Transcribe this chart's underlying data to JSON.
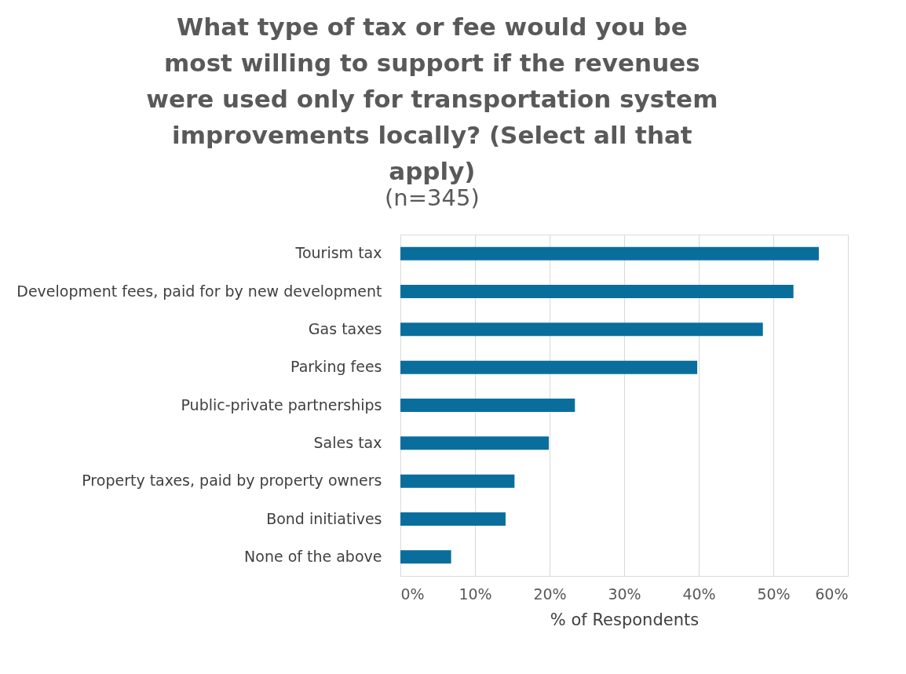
{
  "chart_data": {
    "type": "bar",
    "orientation": "horizontal",
    "title": "What type of tax or fee would you be most willing to support if the revenues were used only for transportation system improvements locally? (Select all that apply)",
    "subtitle": "(n=345)",
    "categories": [
      "Tourism tax",
      "Development fees, paid for by new development",
      "Gas taxes",
      "Parking fees",
      "Public-private partnerships",
      "Sales tax",
      "Property taxes, paid by property owners",
      "Bond initiatives",
      "None of the above"
    ],
    "values": [
      56.1,
      52.7,
      48.6,
      39.8,
      23.4,
      19.9,
      15.3,
      14.1,
      6.8
    ],
    "color": "#0a6e9c",
    "xlabel": "% of Respondents",
    "xlim": [
      0,
      60
    ],
    "xticks": [
      {
        "value": 0,
        "label": "0%"
      },
      {
        "value": 10,
        "label": "10%"
      },
      {
        "value": 20,
        "label": "20%"
      },
      {
        "value": 30,
        "label": "30%"
      },
      {
        "value": 40,
        "label": "40%"
      },
      {
        "value": 50,
        "label": "50%"
      },
      {
        "value": 60,
        "label": "60%"
      }
    ],
    "grid": "x"
  }
}
